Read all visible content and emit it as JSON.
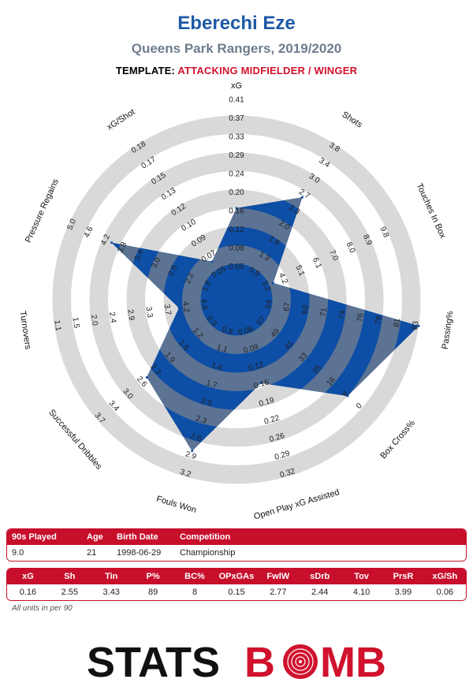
{
  "header": {
    "player_name": "Eberechi Eze",
    "team_season": "Queens Park Rangers, 2019/2020",
    "template_label": "TEMPLATE:",
    "template_value": "ATTACKING MIDFIELDER / WINGER"
  },
  "chart_data": {
    "type": "radar",
    "colors": {
      "fill": "#0d4ea6",
      "ring_grey": "#d9d9d9",
      "overflow": "#5c7393",
      "accent": "#c70f2c"
    },
    "axes": [
      {
        "label": "xG",
        "ticks": [
          "0.05",
          "0.08",
          "0.12",
          "0.16",
          "0.20",
          "0.24",
          "0.29",
          "0.33",
          "0.37",
          "0.41"
        ],
        "value": 0.16
      },
      {
        "label": "Shots",
        "ticks": [
          "0.9",
          "1.3",
          "1.6",
          "2.0",
          "2.3",
          "2.7",
          "3.0",
          "3.4",
          "3.8"
        ],
        "value": 2.55
      },
      {
        "label": "Touches In Box",
        "ticks": [
          "3.2",
          "4.2",
          "5.1",
          "6.1",
          "7.0",
          "8.0",
          "8.9",
          "9.8"
        ],
        "value": 3.43
      },
      {
        "label": "Passing%",
        "ticks": [
          "64",
          "67",
          "69",
          "71",
          "74",
          "76",
          "78",
          "81",
          "83"
        ],
        "value": 89
      },
      {
        "label": "Box Cross%",
        "ticks": [
          "57",
          "49",
          "41",
          "33",
          "25",
          "16",
          "8",
          "0"
        ],
        "value": 8
      },
      {
        "label": "Open Play xG Assisted",
        "ticks": [
          "0.06",
          "0.09",
          "0.12",
          "0.16",
          "0.19",
          "0.22",
          "0.26",
          "0.29",
          "0.32"
        ],
        "value": 0.15
      },
      {
        "label": "Fouls Won",
        "ticks": [
          "0.8",
          "1.1",
          "1.4",
          "1.7",
          "2.0",
          "2.3",
          "2.6",
          "2.9",
          "3.2"
        ],
        "value": 2.77
      },
      {
        "label": "Successful Dribbles",
        "ticks": [
          "0.9",
          "1.2",
          "1.6",
          "1.9",
          "2.3",
          "2.6",
          "3.0",
          "3.4",
          "3.7"
        ],
        "value": 2.44
      },
      {
        "label": "Turnovers",
        "ticks": [
          "4.6",
          "4.2",
          "3.7",
          "3.3",
          "2.9",
          "2.4",
          "2.0",
          "1.5",
          "1.1"
        ],
        "value": 4.1
      },
      {
        "label": "Pressure Regains",
        "ticks": [
          "1.8",
          "2.2",
          "2.6",
          "3.0",
          "3.4",
          "3.8",
          "4.2",
          "4.6",
          "5.0"
        ],
        "value": 3.99
      },
      {
        "label": "xG/Shot",
        "ticks": [
          "0.05",
          "0.07",
          "0.09",
          "0.10",
          "0.12",
          "0.13",
          "0.15",
          "0.17",
          "0.18"
        ],
        "value": 0.06
      }
    ]
  },
  "info_table": {
    "headers": [
      "90s Played",
      "Age",
      "Birth Date",
      "Competition"
    ],
    "values": [
      "9.0",
      "21",
      "1998-06-29",
      "Championship"
    ]
  },
  "stats_table": {
    "headers": [
      "xG",
      "Sh",
      "Tin",
      "P%",
      "BC%",
      "OPxGAs",
      "FwlW",
      "sDrb",
      "Tov",
      "PrsR",
      "xG/Sh"
    ],
    "values": [
      "0.16",
      "2.55",
      "3.43",
      "89",
      "8",
      "0.15",
      "2.77",
      "2.44",
      "4.10",
      "3.99",
      "0.06"
    ]
  },
  "footnote": "All units in per 90",
  "logo": {
    "part1": "STATS",
    "part2": "B",
    "part3": "MB"
  }
}
